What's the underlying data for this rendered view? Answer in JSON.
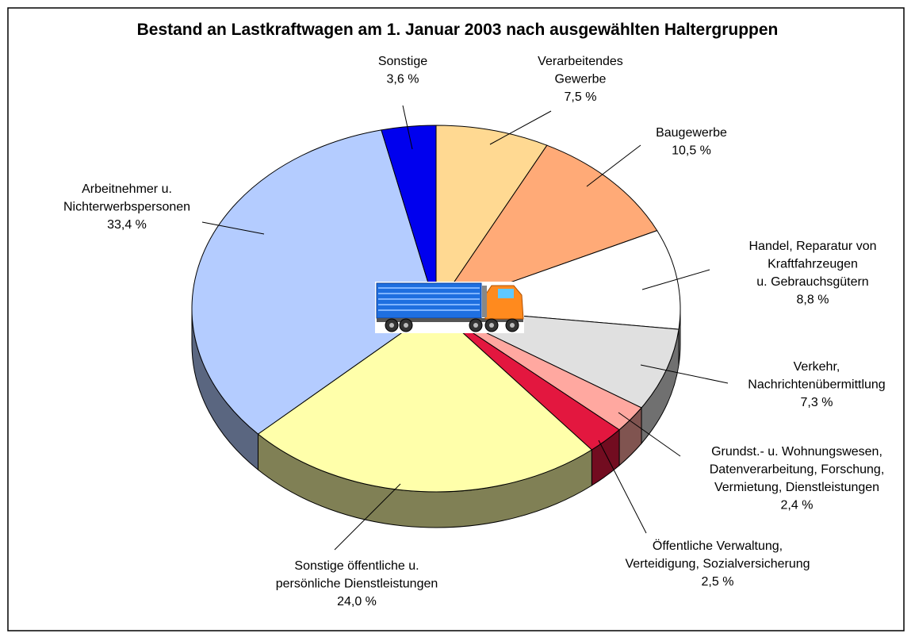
{
  "chart_data": {
    "type": "pie3d",
    "title": "Bestand an Lastkraftwagen am 1. Januar 2003 nach ausgewählten Haltergruppen",
    "categories": [
      [
        "Verarbeitendes",
        "Gewerbe"
      ],
      [
        "Baugewerbe"
      ],
      [
        "Handel, Reparatur von",
        "Kraftfahrzeugen",
        "u. Gebrauchsgütern"
      ],
      [
        "Verkehr,",
        "Nachrichtenübermittlung"
      ],
      [
        "Grundst.- u. Wohnungswesen,",
        "Datenverarbeitung, Forschung,",
        "Vermietung, Dienstleistungen"
      ],
      [
        "Öffentliche Verwaltung,",
        "Verteidigung, Sozialversicherung"
      ],
      [
        "Sonstige öffentliche u.",
        "persönliche Dienstleistungen"
      ],
      [
        "Arbeitnehmer u.",
        "Nichterwerbspersonen"
      ],
      [
        "Sonstige"
      ]
    ],
    "values": [
      7.5,
      10.5,
      8.8,
      7.3,
      2.4,
      2.5,
      24.0,
      33.4,
      3.6
    ],
    "value_labels": [
      "7,5 %",
      "10,5 %",
      "8,8 %",
      "7,3 %",
      "2,4 %",
      "2,5 %",
      "24,0 %",
      "33,4 %",
      "3,6 %"
    ],
    "colors": [
      "#FFD992",
      "#FFAA77",
      "#FFFFFF",
      "#E0E0E0",
      "#FFA8A0",
      "#E3173F",
      "#FFFFAA",
      "#B4CCFF",
      "#0000EE"
    ]
  }
}
